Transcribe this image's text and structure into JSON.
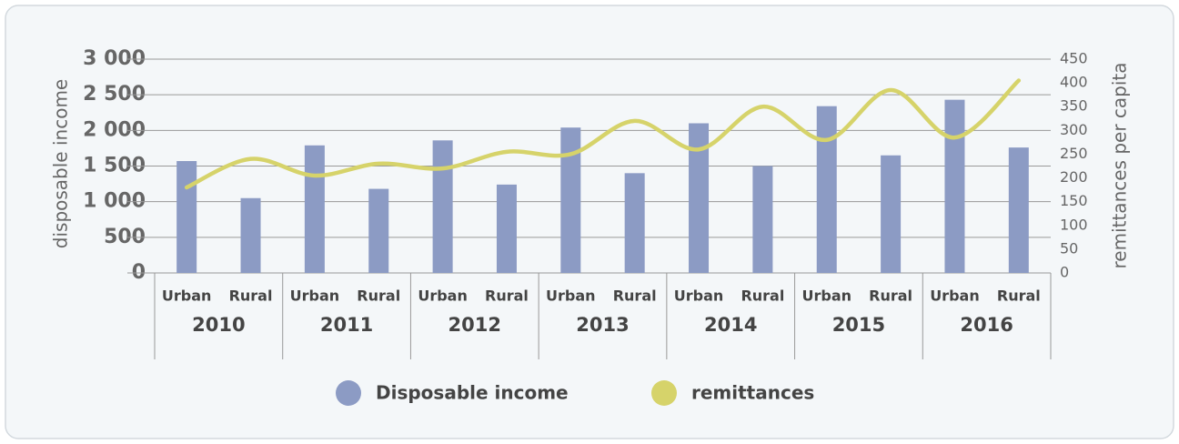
{
  "chart_data": {
    "type": "bar_line",
    "categories": [
      "Urban",
      "Rural",
      "Urban",
      "Rural",
      "Urban",
      "Rural",
      "Urban",
      "Rural",
      "Urban",
      "Rural",
      "Urban",
      "Rural",
      "Urban",
      "Rural"
    ],
    "groups": [
      "2010",
      "2011",
      "2012",
      "2013",
      "2014",
      "2015",
      "2016"
    ],
    "ylabel": "disposable income",
    "y2label": "remittances per capita",
    "series": [
      {
        "name": "Disposable income",
        "color": "#8c9bc4",
        "type": "bar",
        "values": [
          1570,
          1050,
          1790,
          1180,
          1860,
          1240,
          2040,
          1400,
          2100,
          1500,
          2340,
          1650,
          2430,
          1760
        ]
      },
      {
        "name": "remittances",
        "color": "#d6d36a",
        "type": "line",
        "axis": "y2",
        "values": [
          180,
          240,
          205,
          230,
          220,
          255,
          250,
          320,
          260,
          350,
          280,
          385,
          285,
          405
        ]
      }
    ],
    "ylim": [
      0,
      3000
    ],
    "yticks": [
      0,
      500,
      {
        "value": 1000,
        "label": "1 000"
      },
      {
        "value": 1500,
        "label": "1 500"
      },
      {
        "value": 2000,
        "label": "2 000"
      },
      {
        "value": 2500,
        "label": "2 500"
      },
      {
        "value": 3000,
        "label": "3 000"
      }
    ],
    "y2lim": [
      0,
      450
    ],
    "y2ticks": [
      0,
      50,
      100,
      150,
      200,
      250,
      300,
      350,
      400,
      450
    ],
    "grid": true
  }
}
